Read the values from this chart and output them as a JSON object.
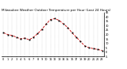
{
  "title": "Milwaukee Weather Outdoor Temperature per Hour (Last 24 Hours)",
  "hours": [
    0,
    1,
    2,
    3,
    4,
    5,
    6,
    7,
    8,
    9,
    10,
    11,
    12,
    13,
    14,
    15,
    16,
    17,
    18,
    19,
    20,
    21,
    22,
    23
  ],
  "temperatures": [
    22,
    20,
    19,
    17,
    15,
    16,
    14,
    17,
    21,
    26,
    32,
    37,
    38,
    36,
    32,
    28,
    22,
    17,
    12,
    7,
    5,
    4,
    3,
    2
  ],
  "line_color": "#cc0000",
  "marker_color": "#000000",
  "bg_color": "#ffffff",
  "grid_color": "#999999",
  "ylim": [
    -5,
    45
  ],
  "ytick_values": [
    -5,
    0,
    5,
    10,
    15,
    20,
    25,
    30,
    35,
    40,
    45
  ],
  "ytick_labels": [
    "-5",
    "0",
    "5",
    "10",
    "15",
    "20",
    "25",
    "30",
    "35",
    "40",
    "45"
  ],
  "title_fontsize": 3.0,
  "tick_fontsize": 2.5,
  "line_width": 0.6,
  "marker_size": 1.0,
  "fig_width": 1.6,
  "fig_height": 0.87,
  "dpi": 100
}
